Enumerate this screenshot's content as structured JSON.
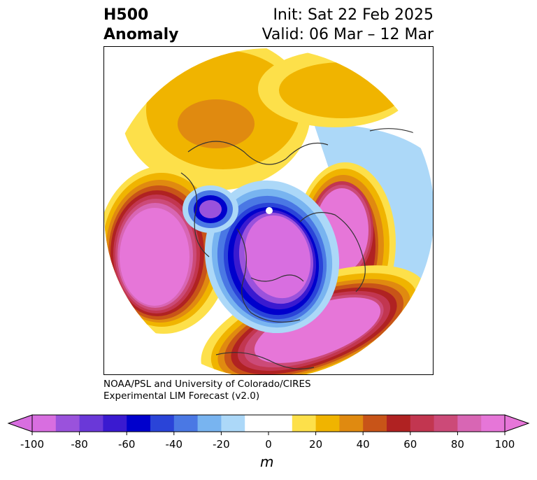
{
  "title": {
    "left_line1": "H500",
    "left_line2": "Anomaly",
    "right_line1": "Init: Sat 22 Feb 2025",
    "right_line2": "Valid: 06 Mar – 12 Mar"
  },
  "credit": {
    "line1": "NOAA/PSL and University of Colorado/CIRES",
    "line2": "Experimental LIM Forecast (v2.0)"
  },
  "colorbar": {
    "unit": "m",
    "ticks": [
      "-100",
      "-80",
      "-60",
      "-40",
      "-20",
      "0",
      "20",
      "40",
      "60",
      "80",
      "100"
    ],
    "colors": [
      "#d86ee0",
      "#9a52dc",
      "#6a38d8",
      "#3a1ad0",
      "#0000cc",
      "#2a44d8",
      "#4a78e4",
      "#78b4f0",
      "#acd8f8",
      "#ffffff",
      "#ffffff",
      "#fde04a",
      "#f0b400",
      "#e08a10",
      "#c85418",
      "#b02222",
      "#c23650",
      "#cc4a78",
      "#d866b4",
      "#e676d8"
    ],
    "extend_low_color": "#d86ee0",
    "extend_high_color": "#e676d8"
  }
}
